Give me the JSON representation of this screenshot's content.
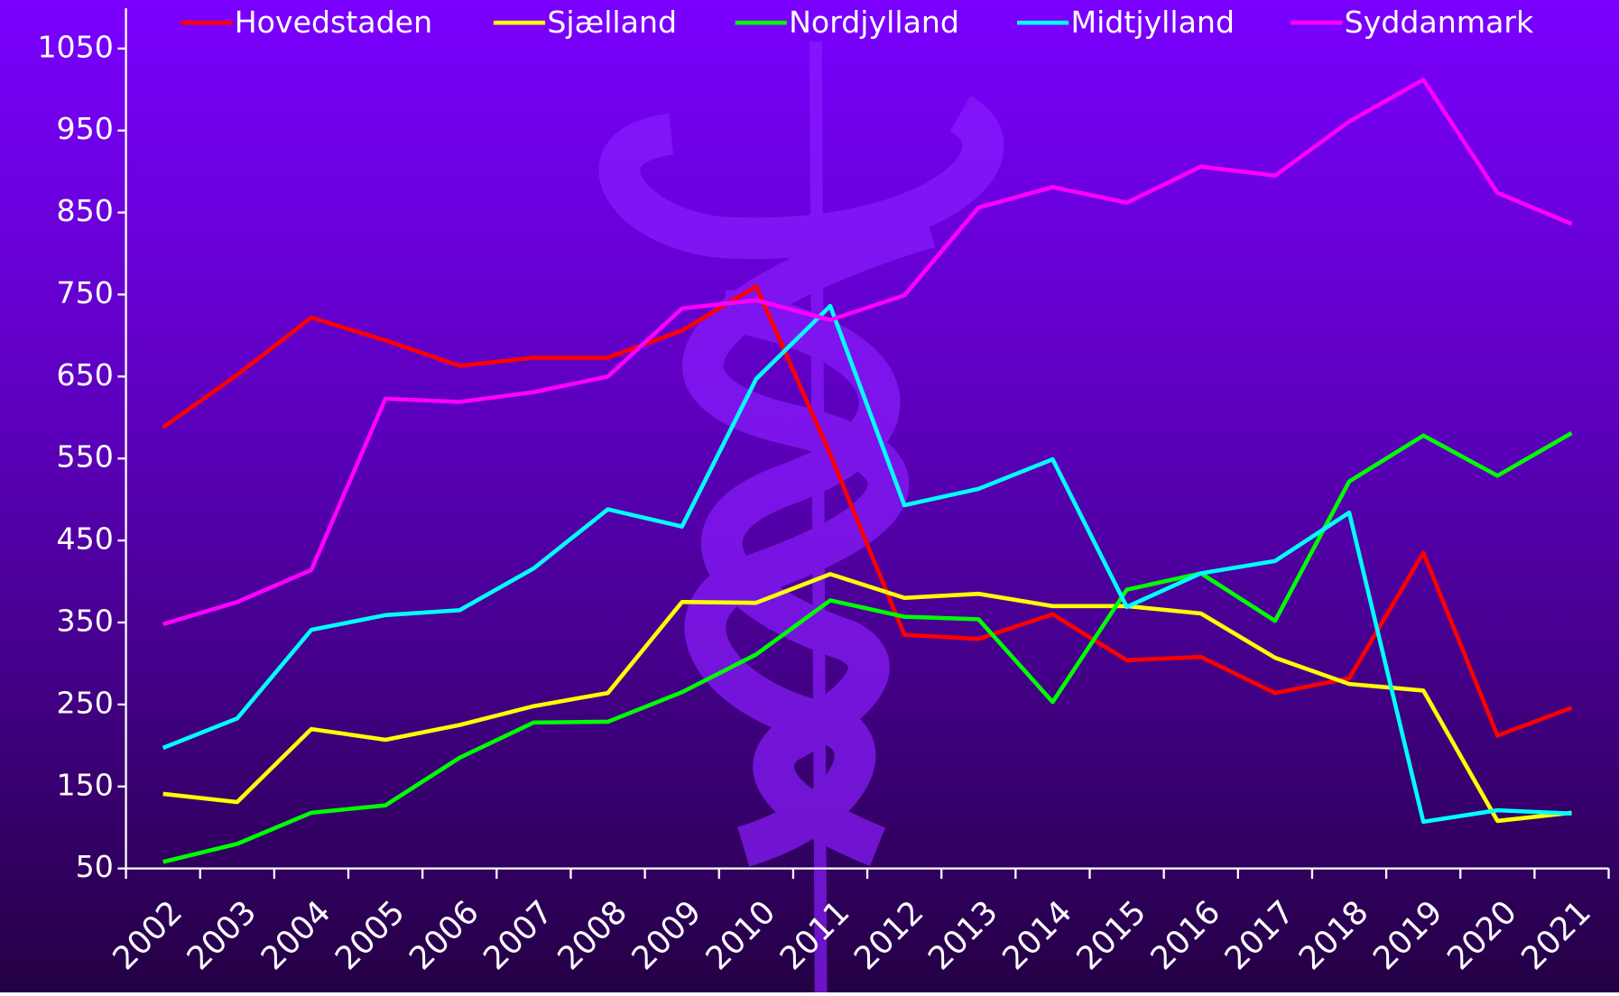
{
  "chart_data": {
    "type": "line",
    "categories": [
      "2002",
      "2003",
      "2004",
      "2005",
      "2006",
      "2007",
      "2008",
      "2009",
      "2010",
      "2011",
      "2012",
      "2013",
      "2014",
      "2015",
      "2016",
      "2017",
      "2018",
      "2019",
      "2020",
      "2021"
    ],
    "series": [
      {
        "name": "Hovedstaden",
        "color": "#ff0000",
        "values": [
          588,
          652,
          722,
          694,
          663,
          673,
          673,
          706,
          760,
          555,
          335,
          330,
          360,
          304,
          308,
          264,
          282,
          435,
          212,
          246
        ]
      },
      {
        "name": "Sjælland",
        "color": "#ffff00",
        "values": [
          141,
          131,
          220,
          207,
          225,
          248,
          264,
          375,
          374,
          409,
          380,
          385,
          370,
          370,
          361,
          307,
          275,
          267,
          108,
          118
        ]
      },
      {
        "name": "Nordjylland",
        "color": "#00ff00",
        "values": [
          58,
          80,
          118,
          127,
          185,
          228,
          229,
          265,
          311,
          377,
          357,
          354,
          253,
          390,
          410,
          352,
          522,
          578,
          529,
          581
        ]
      },
      {
        "name": "Midtjylland",
        "color": "#00ffff",
        "values": [
          197,
          233,
          341,
          359,
          365,
          416,
          488,
          467,
          647,
          736,
          493,
          513,
          549,
          369,
          410,
          425,
          484,
          107,
          121,
          117
        ]
      },
      {
        "name": "Syddanmark",
        "color": "#ff00ff",
        "values": [
          348,
          375,
          414,
          623,
          619,
          631,
          650,
          733,
          743,
          719,
          749,
          856,
          881,
          862,
          906,
          895,
          961,
          1012,
          874,
          836
        ]
      }
    ],
    "ylim": [
      50,
      1050
    ],
    "yticks": [
      50,
      150,
      250,
      350,
      450,
      550,
      650,
      750,
      850,
      950,
      1050
    ],
    "legend": "top"
  }
}
